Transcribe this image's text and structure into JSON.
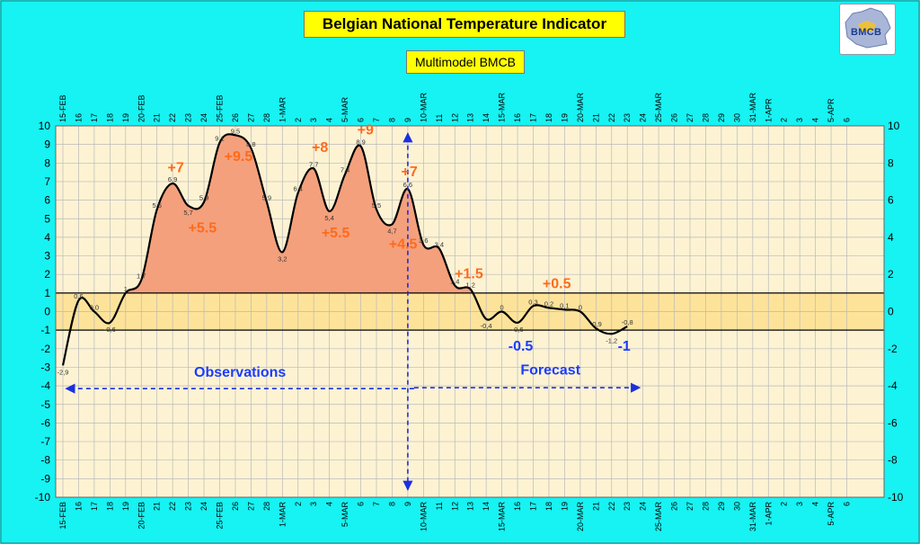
{
  "title": "Belgian National Temperature Indicator",
  "subtitle": "Multimodel BMCB",
  "logo_text": "BMCB",
  "colors": {
    "background": "#17f2f2",
    "plot_bg": "#fdf3d3",
    "band_fill": "#fde39a",
    "area_fill": "#f4a07c",
    "curve": "#000000",
    "annotation_orange": "#ff6a1a",
    "annotation_blue": "#1c3cff",
    "arrow": "#1c2fe0"
  },
  "chart_data": {
    "type": "line",
    "title": "Belgian National Temperature Indicator",
    "subtitle": "Multimodel BMCB",
    "ylim": [
      -10,
      10
    ],
    "y_ticks": [
      "10",
      "9",
      "8",
      "7",
      "6",
      "5",
      "4",
      "3",
      "2",
      "1",
      "0",
      "-1",
      "-2",
      "-3",
      "-4",
      "-5",
      "-6",
      "-7",
      "-8",
      "-9",
      "-10"
    ],
    "y2_ticks": [
      "10",
      "8",
      "6",
      "4",
      "2",
      "0",
      "-2",
      "-4",
      "-6",
      "-8",
      "-10"
    ],
    "grid": true,
    "x_labels": [
      "15-FEB",
      "16",
      "17",
      "18",
      "19",
      "20-FEB",
      "21",
      "22",
      "23",
      "24",
      "25-FEB",
      "26",
      "27",
      "28",
      "1-MAR",
      "2",
      "3",
      "4",
      "5-MAR",
      "6",
      "7",
      "8",
      "9",
      "10-MAR",
      "11",
      "12",
      "13",
      "14",
      "15-MAR",
      "16",
      "17",
      "18",
      "19",
      "20-MAR",
      "21",
      "22",
      "23",
      "24",
      "25-MAR",
      "26",
      "27",
      "28",
      "29",
      "30",
      "31-MAR",
      "1-APR",
      "2",
      "3",
      "4",
      "5-APR",
      "6"
    ],
    "series": [
      {
        "values": [
          -2.9,
          0.6,
          0.0,
          -0.6,
          1.0,
          1.7,
          5.5,
          6.9,
          5.7,
          5.9,
          9.1,
          9.5,
          8.8,
          5.9,
          3.2,
          6.4,
          7.7,
          5.4,
          7.4,
          8.9,
          5.5,
          4.7,
          6.6,
          3.6,
          3.4,
          1.4,
          1.2,
          -0.4,
          0.0,
          -0.6,
          0.3,
          0.2,
          0.1,
          0.0,
          -0.9,
          -1.2,
          -0.8
        ],
        "labels": [
          "-2,9",
          "0,6",
          "0,0",
          "-0,6",
          "1",
          "1,7",
          "5,5",
          "6,9",
          "5,7",
          "5,9",
          "9,1",
          "9,5",
          "8,8",
          "5,9",
          "3,2",
          "6,4",
          "7,7",
          "5,4",
          "7,4",
          "8,9",
          "5,5",
          "4,7",
          "6,6",
          "3,6",
          "3,4",
          "1,4",
          "1,2",
          "-0,4",
          "0",
          "-0,6",
          "0,3",
          "0,2",
          "0,1",
          "0",
          "-0,9",
          "-1,2",
          "-0,8"
        ]
      }
    ],
    "reference_lines": [
      1,
      -1
    ],
    "annotations": [
      {
        "text": "+7",
        "x": 7.2,
        "y": 7.5,
        "color": "orange"
      },
      {
        "text": "+5.5",
        "x": 8.9,
        "y": 4.25,
        "color": "orange"
      },
      {
        "text": "+9.5",
        "x": 11.2,
        "y": 8.1,
        "color": "orange"
      },
      {
        "text": "+8",
        "x": 16.4,
        "y": 8.6,
        "color": "orange"
      },
      {
        "text": "+5.5",
        "x": 17.4,
        "y": 4.0,
        "color": "orange"
      },
      {
        "text": "+9",
        "x": 19.3,
        "y": 9.55,
        "color": "orange"
      },
      {
        "text": "+4.5",
        "x": 21.7,
        "y": 3.4,
        "color": "orange"
      },
      {
        "text": "+7",
        "x": 22.1,
        "y": 7.3,
        "color": "orange"
      },
      {
        "text": "+1.5",
        "x": 25.9,
        "y": 1.8,
        "color": "orange"
      },
      {
        "text": "+0.5",
        "x": 31.5,
        "y": 1.25,
        "color": "orange"
      },
      {
        "text": "-0.5",
        "x": 29.2,
        "y": -2.1,
        "color": "blue"
      },
      {
        "text": "-1",
        "x": 35.8,
        "y": -2.1,
        "color": "blue"
      },
      {
        "text": "Observations",
        "x": 11.3,
        "y": -3.5,
        "color": "blue"
      },
      {
        "text": "Forecast",
        "x": 31.1,
        "y": -3.4,
        "color": "blue"
      }
    ],
    "observation_arrow": {
      "from": 0.2,
      "to": 22.4,
      "y": -4.15
    },
    "forecast_arrow": {
      "from": 22.4,
      "to": 36.8,
      "y": -4.1
    },
    "today_marker": {
      "x": 22,
      "y_top": 9.6,
      "y_bottom": -9.6
    }
  }
}
